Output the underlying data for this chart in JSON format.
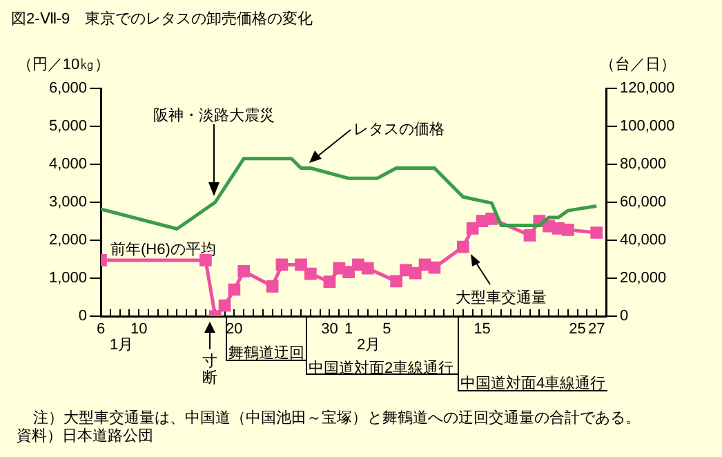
{
  "chart_data": {
    "type": "line",
    "title": "図2-Ⅶ-9　東京でのレタスの卸売価格の変化",
    "ylabel": "（円／10㎏）",
    "y2label": "（台／日）",
    "xlim": [
      "--01-06",
      "--02-28"
    ],
    "ylim": [
      0,
      6000
    ],
    "y2lim": [
      0,
      120000
    ],
    "xticks": [
      {
        "value": "--01-06",
        "label": "6"
      },
      {
        "value": "--01-07",
        "label": null
      },
      {
        "value": "--01-08",
        "label": null
      },
      {
        "value": "--01-09",
        "label": null
      },
      {
        "value": "--01-10",
        "label": "10"
      },
      {
        "value": "--01-11",
        "label": null
      },
      {
        "value": "--01-12",
        "label": null
      },
      {
        "value": "--01-13",
        "label": null
      },
      {
        "value": "--01-14",
        "label": null
      },
      {
        "value": "--01-15",
        "label": null
      },
      {
        "value": "--01-16",
        "label": null
      },
      {
        "value": "--01-17",
        "label": null
      },
      {
        "value": "--01-18",
        "label": null
      },
      {
        "value": "--01-19",
        "label": null
      },
      {
        "value": "--01-20",
        "label": "20"
      },
      {
        "value": "--01-21",
        "label": null
      },
      {
        "value": "--01-22",
        "label": null
      },
      {
        "value": "--01-23",
        "label": null
      },
      {
        "value": "--01-24",
        "label": null
      },
      {
        "value": "--01-25",
        "label": null
      },
      {
        "value": "--01-26",
        "label": null
      },
      {
        "value": "--01-27",
        "label": null
      },
      {
        "value": "--01-28",
        "label": null
      },
      {
        "value": "--01-29",
        "label": null
      },
      {
        "value": "--01-30",
        "label": "30"
      },
      {
        "value": "--01-31",
        "label": null
      },
      {
        "value": "--02-01",
        "label": "1"
      },
      {
        "value": "--02-02",
        "label": null
      },
      {
        "value": "--02-03",
        "label": null
      },
      {
        "value": "--02-04",
        "label": null
      },
      {
        "value": "--02-05",
        "label": "5"
      },
      {
        "value": "--02-06",
        "label": null
      },
      {
        "value": "--02-07",
        "label": null
      },
      {
        "value": "--02-08",
        "label": null
      },
      {
        "value": "--02-09",
        "label": null
      },
      {
        "value": "--02-10",
        "label": null
      },
      {
        "value": "--02-11",
        "label": null
      },
      {
        "value": "--02-12",
        "label": null
      },
      {
        "value": "--02-13",
        "label": null
      },
      {
        "value": "--02-14",
        "label": null
      },
      {
        "value": "--02-15",
        "label": "15"
      },
      {
        "value": "--02-16",
        "label": null
      },
      {
        "value": "--02-17",
        "label": null
      },
      {
        "value": "--02-18",
        "label": null
      },
      {
        "value": "--02-19",
        "label": null
      },
      {
        "value": "--02-20",
        "label": null
      },
      {
        "value": "--02-21",
        "label": null
      },
      {
        "value": "--02-22",
        "label": null
      },
      {
        "value": "--02-23",
        "label": null
      },
      {
        "value": "--02-24",
        "label": null
      },
      {
        "value": "--02-25",
        "label": "25"
      },
      {
        "value": "--02-26",
        "label": null
      },
      {
        "value": "--02-27",
        "label": "27"
      }
    ],
    "yticks": [
      0,
      {
        "value": 1000,
        "label": "1,000"
      },
      {
        "value": 2000,
        "label": "2,000"
      },
      {
        "value": 3000,
        "label": "3,000"
      },
      {
        "value": 4000,
        "label": "4,000"
      },
      {
        "value": 5000,
        "label": "5,000"
      },
      {
        "value": 6000,
        "label": "6,000"
      }
    ],
    "y2ticks": [
      0,
      {
        "value": 20000,
        "label": "20,000"
      },
      {
        "value": 40000,
        "label": "40,000"
      },
      {
        "value": 60000,
        "label": "60,000"
      },
      {
        "value": 80000,
        "label": "80,000"
      },
      {
        "value": 100000,
        "label": "100,000"
      },
      {
        "value": 120000,
        "label": "120,000"
      }
    ],
    "grid": false,
    "legend": false,
    "series": [
      {
        "name": "レタスの価格",
        "color": "#3c9c48",
        "marker": "none",
        "x": [
          "--01-06",
          "--01-14",
          "--01-18",
          "--01-21",
          "--01-26",
          "--01-27",
          "--01-28",
          "--02-01",
          "--02-04",
          "--02-06",
          "--02-10",
          "--02-13",
          "--02-16",
          "--02-17",
          "--02-21",
          "--02-22",
          "--02-23",
          "--02-24",
          "--02-25",
          "--02-27"
        ],
        "values": [
          2820,
          2300,
          3000,
          4150,
          4150,
          3900,
          3900,
          3630,
          3630,
          3900,
          3900,
          3140,
          2980,
          2390,
          2390,
          2600,
          2600,
          2780,
          2820,
          2900
        ]
      },
      {
        "name": "大型車交通量",
        "color": "#f050a0",
        "marker": "square",
        "axis": "y2",
        "x": [
          "--01-06",
          "--01-17",
          "--01-18",
          "--01-19",
          "--01-20",
          "--01-21",
          "--01-24",
          "--01-25",
          "--01-27",
          "--01-28",
          "--01-30",
          "--01-31",
          "--02-01",
          "--02-02",
          "--02-03",
          "--02-06",
          "--02-07",
          "--02-08",
          "--02-09",
          "--02-10",
          "--02-13",
          "--02-14",
          "--02-15",
          "--02-16",
          "--02-20",
          "--02-21",
          "--02-22",
          "--02-23",
          "--02-24",
          "--02-27"
        ],
        "values": [
          29500,
          29500,
          0,
          5600,
          14000,
          23700,
          15700,
          27100,
          27100,
          22300,
          18100,
          25200,
          23200,
          27100,
          25200,
          18400,
          24200,
          22700,
          27100,
          25600,
          36500,
          46200,
          50100,
          51300,
          42600,
          50100,
          47400,
          46200,
          45500,
          44000
        ]
      }
    ],
    "annotations": [
      "阪神・淡路大震災",
      "前年(H6)の平均",
      "1月",
      "2月",
      "寸断",
      "舞鶴道迂回",
      "中国道対面2車線通行",
      "中国道対面4車線通行",
      "注）大型車交通量は、中国道（中国池田～宝塚）と舞鶴道への迂回交通量の合計である。",
      "資料）日本道路公団"
    ]
  }
}
